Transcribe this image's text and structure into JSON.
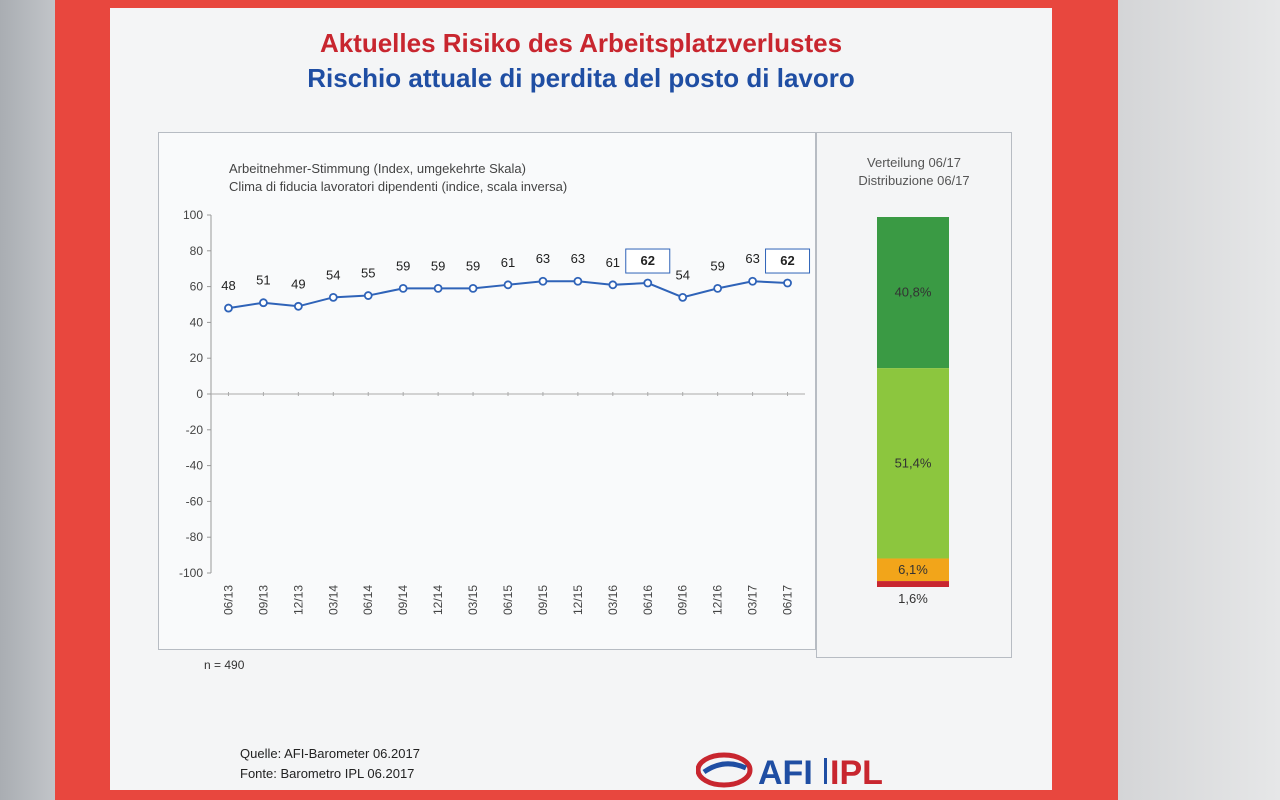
{
  "slide": {
    "title_de": "Aktuelles Risiko des Arbeitsplatzverlustes",
    "title_it": "Rischio attuale di perdita del posto di lavoro",
    "sample_note": "n = 490",
    "source_de": "Quelle: AFI-Barometer 06.2017",
    "source_it": "Fonte: Barometro IPL 06.2017",
    "logo_text": "AFI IPL"
  },
  "colors": {
    "frame": "#e8473e",
    "title_de": "#c8262f",
    "title_it": "#1f4ea3",
    "series": "#2f63b8",
    "dark_green": "#3a9a44",
    "light_green": "#8cc63e",
    "orange": "#f2a51a",
    "red": "#c8262f"
  },
  "chart_data": [
    {
      "type": "line",
      "subtitle_de": "Arbeitnehmer-Stimmung  (Index, umgekehrte Skala)",
      "subtitle_it": "Clima di fiducia lavoratori dipendenti  (indice, scala inversa)",
      "x": [
        "06/13",
        "09/13",
        "12/13",
        "03/14",
        "06/14",
        "09/14",
        "12/14",
        "03/15",
        "06/15",
        "09/15",
        "12/15",
        "03/16",
        "06/16",
        "09/16",
        "12/16",
        "03/17",
        "06/17"
      ],
      "series": [
        {
          "values": [
            48,
            51,
            49,
            54,
            55,
            59,
            59,
            59,
            61,
            63,
            63,
            61,
            62,
            54,
            59,
            63,
            62
          ]
        }
      ],
      "boxed_labels": [
        "06/16",
        "06/17"
      ],
      "ylim": [
        -100,
        100
      ],
      "yticks": [
        100,
        80,
        60,
        40,
        20,
        0,
        -20,
        -40,
        -60,
        -80,
        -100
      ],
      "grid": false
    },
    {
      "type": "bar",
      "stacked": true,
      "title_de": "Verteilung 06/17",
      "title_it": "Distribuzione 06/17",
      "segments": [
        {
          "label": "40,8%",
          "value": 40.8,
          "color": "#3a9a44"
        },
        {
          "label": "51,4%",
          "value": 51.4,
          "color": "#8cc63e"
        },
        {
          "label": "6,1%",
          "value": 6.1,
          "color": "#f2a51a"
        },
        {
          "label": "1,6%",
          "value": 1.6,
          "color": "#c8262f"
        }
      ]
    }
  ]
}
